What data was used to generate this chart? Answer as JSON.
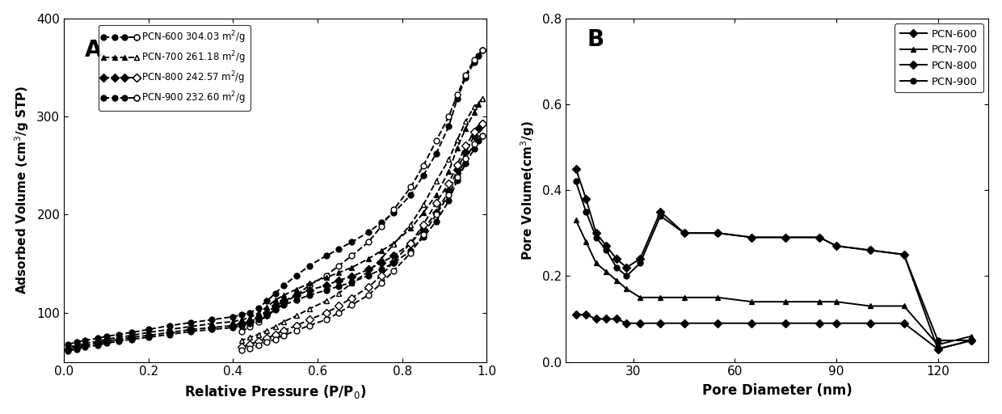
{
  "panel_A": {
    "label": "A",
    "xlabel": "Relative Pressure (P/P$_0$)",
    "ylabel": "Adsorbed Volume (cm$^3$/g STP)",
    "xlim": [
      0.0,
      1.0
    ],
    "ylim": [
      50,
      400
    ],
    "yticks": [
      100,
      200,
      300,
      400
    ],
    "xticks": [
      0.0,
      0.2,
      0.4,
      0.6,
      0.8,
      1.0
    ],
    "series": [
      {
        "name": "PCN-600 304.03 m$^2$/g",
        "ads_x": [
          0.01,
          0.03,
          0.05,
          0.08,
          0.1,
          0.13,
          0.16,
          0.2,
          0.25,
          0.3,
          0.35,
          0.4,
          0.42,
          0.44,
          0.46,
          0.48,
          0.5,
          0.52,
          0.55,
          0.58,
          0.62,
          0.65,
          0.68,
          0.72,
          0.75,
          0.78,
          0.82,
          0.85,
          0.88,
          0.91,
          0.93,
          0.95,
          0.97,
          0.98,
          0.99
        ],
        "ads_y": [
          68,
          70,
          72,
          74,
          76,
          78,
          80,
          83,
          87,
          90,
          93,
          96,
          98,
          100,
          105,
          112,
          120,
          128,
          138,
          148,
          158,
          165,
          172,
          182,
          192,
          202,
          220,
          240,
          262,
          290,
          318,
          340,
          355,
          362,
          368
        ],
        "des_x": [
          0.99,
          0.97,
          0.95,
          0.93,
          0.91,
          0.88,
          0.85,
          0.82,
          0.78,
          0.75,
          0.72,
          0.68,
          0.65,
          0.62,
          0.58,
          0.55,
          0.52,
          0.5,
          0.48,
          0.46,
          0.44,
          0.42
        ],
        "des_y": [
          368,
          358,
          342,
          322,
          300,
          275,
          250,
          228,
          205,
          188,
          172,
          158,
          148,
          138,
          128,
          118,
          110,
          103,
          97,
          91,
          86,
          81
        ],
        "marker": "o",
        "linestyle": "--"
      },
      {
        "name": "PCN-700 261.18 m$^2$/g",
        "ads_x": [
          0.01,
          0.03,
          0.05,
          0.08,
          0.1,
          0.13,
          0.16,
          0.2,
          0.25,
          0.3,
          0.35,
          0.4,
          0.42,
          0.44,
          0.46,
          0.48,
          0.5,
          0.52,
          0.55,
          0.58,
          0.62,
          0.65,
          0.68,
          0.72,
          0.75,
          0.78,
          0.82,
          0.85,
          0.88,
          0.91,
          0.93,
          0.95,
          0.97,
          0.98,
          0.99
        ],
        "ads_y": [
          65,
          67,
          69,
          71,
          73,
          75,
          77,
          80,
          83,
          86,
          89,
          91,
          93,
          95,
          100,
          106,
          113,
          118,
          124,
          130,
          136,
          141,
          146,
          155,
          163,
          171,
          186,
          202,
          220,
          244,
          268,
          288,
          304,
          312,
          318
        ],
        "des_x": [
          0.99,
          0.97,
          0.95,
          0.93,
          0.91,
          0.88,
          0.85,
          0.82,
          0.78,
          0.75,
          0.72,
          0.68,
          0.65,
          0.62,
          0.58,
          0.55,
          0.52,
          0.5,
          0.48,
          0.46,
          0.44,
          0.42
        ],
        "des_y": [
          318,
          310,
          295,
          276,
          256,
          234,
          210,
          190,
          170,
          155,
          142,
          130,
          120,
          112,
          104,
          97,
          91,
          86,
          82,
          78,
          75,
          72
        ],
        "marker": "^",
        "linestyle": "--"
      },
      {
        "name": "PCN-800 242.57 m$^2$/g",
        "ads_x": [
          0.01,
          0.03,
          0.05,
          0.08,
          0.1,
          0.13,
          0.16,
          0.2,
          0.25,
          0.3,
          0.35,
          0.4,
          0.42,
          0.44,
          0.46,
          0.48,
          0.5,
          0.52,
          0.55,
          0.58,
          0.62,
          0.65,
          0.68,
          0.72,
          0.75,
          0.78,
          0.82,
          0.85,
          0.88,
          0.91,
          0.93,
          0.95,
          0.97,
          0.98,
          0.99
        ],
        "ads_y": [
          63,
          65,
          67,
          69,
          71,
          73,
          75,
          77,
          80,
          83,
          85,
          87,
          89,
          91,
          95,
          100,
          107,
          112,
          118,
          123,
          128,
          133,
          137,
          144,
          151,
          158,
          171,
          185,
          202,
          224,
          246,
          264,
          280,
          288,
          293
        ],
        "des_x": [
          0.99,
          0.97,
          0.95,
          0.93,
          0.91,
          0.88,
          0.85,
          0.82,
          0.78,
          0.75,
          0.72,
          0.68,
          0.65,
          0.62,
          0.58,
          0.55,
          0.52,
          0.5,
          0.48,
          0.46,
          0.44,
          0.42
        ],
        "des_y": [
          293,
          284,
          270,
          251,
          232,
          212,
          190,
          171,
          152,
          138,
          126,
          115,
          107,
          100,
          93,
          87,
          82,
          78,
          74,
          71,
          68,
          65
        ],
        "marker": "D",
        "linestyle": "--"
      },
      {
        "name": "PCN-900 232.60 m$^2$/g",
        "ads_x": [
          0.01,
          0.03,
          0.05,
          0.08,
          0.1,
          0.13,
          0.16,
          0.2,
          0.25,
          0.3,
          0.35,
          0.4,
          0.42,
          0.44,
          0.46,
          0.48,
          0.5,
          0.52,
          0.55,
          0.58,
          0.62,
          0.65,
          0.68,
          0.72,
          0.75,
          0.78,
          0.82,
          0.85,
          0.88,
          0.91,
          0.93,
          0.95,
          0.97,
          0.98,
          0.99
        ],
        "ads_y": [
          61,
          63,
          65,
          67,
          69,
          71,
          73,
          75,
          78,
          81,
          83,
          85,
          87,
          89,
          93,
          97,
          104,
          108,
          113,
          118,
          123,
          127,
          131,
          138,
          144,
          151,
          163,
          177,
          193,
          214,
          235,
          252,
          267,
          275,
          280
        ],
        "des_x": [
          0.99,
          0.97,
          0.95,
          0.93,
          0.91,
          0.88,
          0.85,
          0.82,
          0.78,
          0.75,
          0.72,
          0.68,
          0.65,
          0.62,
          0.58,
          0.55,
          0.52,
          0.5,
          0.48,
          0.46,
          0.44,
          0.42
        ],
        "des_y": [
          280,
          272,
          257,
          238,
          220,
          200,
          180,
          161,
          143,
          130,
          118,
          108,
          100,
          93,
          87,
          82,
          77,
          73,
          70,
          67,
          64,
          62
        ],
        "marker": "o",
        "linestyle": "--"
      }
    ]
  },
  "panel_B": {
    "label": "B",
    "xlabel": "Pore Diameter (nm)",
    "ylabel": "Pore Volume(cm$^3$/g)",
    "xlim": [
      10,
      135
    ],
    "ylim": [
      0.0,
      0.8
    ],
    "yticks": [
      0.0,
      0.2,
      0.4,
      0.6,
      0.8
    ],
    "xticks": [
      30,
      60,
      90,
      120
    ],
    "series": [
      {
        "name": "PCN-600",
        "x": [
          13,
          16,
          19,
          22,
          25,
          28,
          32,
          38,
          45,
          55,
          65,
          75,
          85,
          90,
          100,
          110,
          120,
          130
        ],
        "y": [
          0.11,
          0.11,
          0.1,
          0.1,
          0.1,
          0.09,
          0.09,
          0.09,
          0.09,
          0.09,
          0.09,
          0.09,
          0.09,
          0.09,
          0.09,
          0.09,
          0.03,
          0.05
        ],
        "marker": "D",
        "linestyle": "-"
      },
      {
        "name": "PCN-700",
        "x": [
          13,
          16,
          19,
          22,
          25,
          28,
          32,
          38,
          45,
          55,
          65,
          75,
          85,
          90,
          100,
          110,
          120,
          130
        ],
        "y": [
          0.33,
          0.28,
          0.23,
          0.21,
          0.19,
          0.17,
          0.15,
          0.15,
          0.15,
          0.15,
          0.14,
          0.14,
          0.14,
          0.14,
          0.13,
          0.13,
          0.04,
          0.06
        ],
        "marker": "^",
        "linestyle": "-"
      },
      {
        "name": "PCN-800",
        "x": [
          13,
          16,
          19,
          22,
          25,
          28,
          32,
          38,
          45,
          55,
          65,
          75,
          85,
          90,
          100,
          110,
          120,
          130
        ],
        "y": [
          0.45,
          0.38,
          0.3,
          0.27,
          0.24,
          0.22,
          0.24,
          0.35,
          0.3,
          0.3,
          0.29,
          0.29,
          0.29,
          0.27,
          0.26,
          0.25,
          0.03,
          0.05
        ],
        "marker": "D",
        "linestyle": "-"
      },
      {
        "name": "PCN-900",
        "x": [
          13,
          16,
          19,
          22,
          25,
          28,
          32,
          38,
          45,
          55,
          65,
          75,
          85,
          90,
          100,
          110,
          120,
          130
        ],
        "y": [
          0.42,
          0.35,
          0.29,
          0.26,
          0.22,
          0.2,
          0.23,
          0.34,
          0.3,
          0.3,
          0.29,
          0.29,
          0.29,
          0.27,
          0.26,
          0.25,
          0.05,
          0.05
        ],
        "marker": "o",
        "linestyle": "-"
      }
    ]
  },
  "color": "#000000",
  "markersize": 5,
  "linewidth": 1.4
}
